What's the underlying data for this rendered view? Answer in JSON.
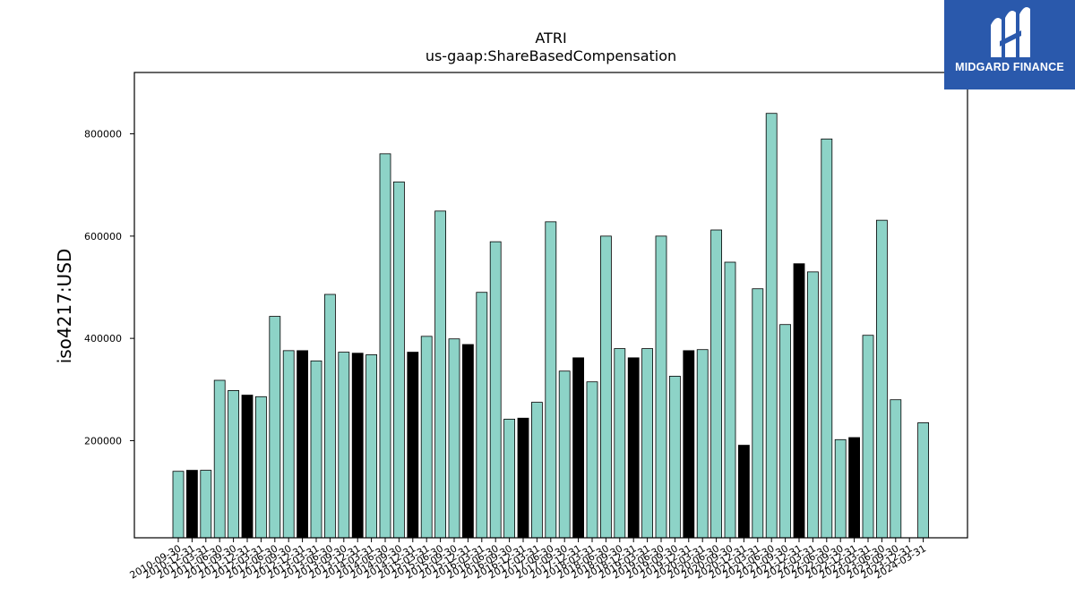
{
  "brand": {
    "name": "MIDGARD FINANCE",
    "logo_icon": "midgard-m-logo-icon",
    "bg_color": "#2a59ac"
  },
  "chart_data": {
    "type": "bar",
    "title": "ATRI",
    "subtitle": "us-gaap:ShareBasedCompensation",
    "xlabel": "",
    "ylabel": "iso4217:USD",
    "ylim": [
      10000,
      920000
    ],
    "yticks": [
      200000,
      400000,
      600000,
      800000
    ],
    "grid": false,
    "colors": {
      "primary": "#8dd3c7",
      "highlight": "#000000",
      "edge": "#000000"
    },
    "categories": [
      "2010-09-30",
      "2010-12-31",
      "2011-03-31",
      "2011-06-30",
      "2011-09-30",
      "2011-12-31",
      "2012-03-31",
      "2012-06-30",
      "2012-09-30",
      "2012-12-31",
      "2013-03-31",
      "2013-06-30",
      "2013-09-30",
      "2013-12-31",
      "2014-03-31",
      "2014-06-30",
      "2014-09-30",
      "2014-12-31",
      "2015-03-31",
      "2015-06-30",
      "2015-09-30",
      "2015-12-31",
      "2016-03-31",
      "2016-06-30",
      "2016-09-30",
      "2016-12-31",
      "2017-03-31",
      "2017-06-30",
      "2017-09-30",
      "2017-12-31",
      "2018-03-31",
      "2018-06-30",
      "2018-09-30",
      "2018-12-31",
      "2019-03-31",
      "2019-06-30",
      "2019-09-30",
      "2019-12-31",
      "2020-03-31",
      "2020-06-30",
      "2020-09-30",
      "2020-12-31",
      "2021-03-31",
      "2021-06-30",
      "2021-09-30",
      "2021-12-31",
      "2022-03-31",
      "2022-06-30",
      "2022-09-30",
      "2022-12-31",
      "2023-03-31",
      "2023-06-30",
      "2023-09-30",
      "2023-12-31",
      "2024-03-31"
    ],
    "values": [
      140000,
      142000,
      142000,
      318000,
      298000,
      289000,
      286000,
      443000,
      376000,
      376000,
      356000,
      486000,
      373000,
      371000,
      368000,
      761000,
      706000,
      373000,
      404000,
      649000,
      399000,
      388000,
      490000,
      589000,
      242000,
      244000,
      275000,
      628000,
      336000,
      362000,
      315000,
      600000,
      380000,
      362000,
      380000,
      600000,
      326000,
      376000,
      378000,
      612000,
      549000,
      191000,
      497000,
      840000,
      427000,
      546000,
      530000,
      790000,
      202000,
      206000,
      406000,
      631000,
      280000,
      null,
      235000
    ],
    "highlight": [
      false,
      true,
      false,
      false,
      false,
      true,
      false,
      false,
      false,
      true,
      false,
      false,
      false,
      true,
      false,
      false,
      false,
      true,
      false,
      false,
      false,
      true,
      false,
      false,
      false,
      true,
      false,
      false,
      false,
      true,
      false,
      false,
      false,
      true,
      false,
      false,
      false,
      true,
      false,
      false,
      false,
      true,
      false,
      false,
      false,
      true,
      false,
      false,
      false,
      true,
      false,
      false,
      false,
      false,
      false
    ]
  }
}
